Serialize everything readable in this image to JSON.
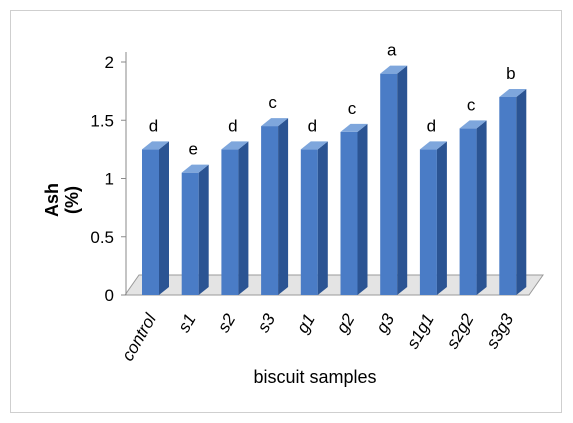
{
  "chart_data": {
    "type": "bar",
    "ylabel_line1": "Ash",
    "ylabel_line2": "(%)",
    "xlabel": "biscuit samples",
    "ylim": [
      0,
      2
    ],
    "yticks": [
      "0",
      "0.5",
      "1",
      "1.5",
      "2"
    ],
    "grid": false,
    "categories": [
      "control",
      "s1",
      "s2",
      "s3",
      "g1",
      "g2",
      "g3",
      "s1g1",
      "s2g2",
      "s3g3"
    ],
    "values": [
      1.25,
      1.05,
      1.25,
      1.45,
      1.25,
      1.4,
      1.9,
      1.25,
      1.43,
      1.7
    ],
    "letters": [
      "d",
      "e",
      "d",
      "c",
      "d",
      "c",
      "a",
      "d",
      "c",
      "b"
    ],
    "colors": {
      "front": "#4a7cc6",
      "side": "#2b5493",
      "top": "#7ea6dc",
      "floor": "#e4e4e4"
    }
  }
}
